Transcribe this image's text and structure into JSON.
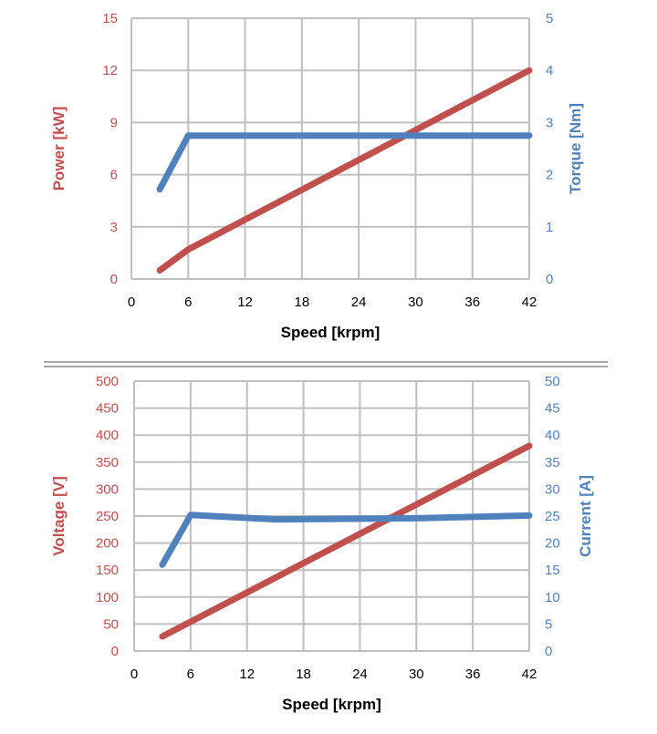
{
  "chart_data": [
    {
      "type": "line",
      "xlabel": "Speed [krpm]",
      "x_ticks": [
        "0",
        "6",
        "12",
        "18",
        "24",
        "30",
        "36",
        "42"
      ],
      "xlim": [
        0,
        42
      ],
      "left_axis": {
        "label": "Power [kW]",
        "ylim": [
          0,
          15
        ],
        "ticks": [
          "0",
          "3",
          "6",
          "9",
          "12",
          "15"
        ],
        "color": "#c0504d"
      },
      "right_axis": {
        "label": "Torque [Nm]",
        "ylim": [
          0,
          5
        ],
        "ticks": [
          "0",
          "1",
          "2",
          "3",
          "4",
          "5"
        ],
        "color": "#4f81bd"
      },
      "series": [
        {
          "axis": "left",
          "color": "#c0504d",
          "x": [
            3,
            6,
            42
          ],
          "y": [
            0.5,
            1.7,
            12.0
          ]
        },
        {
          "axis": "right",
          "color": "#4f81bd",
          "x": [
            3,
            6,
            42
          ],
          "y": [
            1.72,
            2.75,
            2.75
          ]
        }
      ],
      "grid": true
    },
    {
      "type": "line",
      "xlabel": "Speed [krpm]",
      "x_ticks": [
        "0",
        "6",
        "12",
        "18",
        "24",
        "30",
        "36",
        "42"
      ],
      "xlim": [
        0,
        42
      ],
      "left_axis": {
        "label": "Voltage [V]",
        "ylim": [
          0,
          500
        ],
        "ticks": [
          "0",
          "50",
          "100",
          "150",
          "200",
          "250",
          "300",
          "350",
          "400",
          "450",
          "500"
        ],
        "color": "#c0504d"
      },
      "right_axis": {
        "label": "Current [A]",
        "ylim": [
          0,
          50
        ],
        "ticks": [
          "0",
          "5",
          "10",
          "15",
          "20",
          "25",
          "30",
          "35",
          "40",
          "45",
          "50"
        ],
        "color": "#4f81bd"
      },
      "series": [
        {
          "axis": "left",
          "color": "#c0504d",
          "x": [
            3,
            42
          ],
          "y": [
            27,
            380
          ]
        },
        {
          "axis": "right",
          "color": "#4f81bd",
          "x": [
            3,
            6,
            15,
            30,
            42
          ],
          "y": [
            16.0,
            25.2,
            24.4,
            24.6,
            25.1
          ]
        }
      ],
      "grid": true
    }
  ],
  "separator_color": "#a6a6a6"
}
